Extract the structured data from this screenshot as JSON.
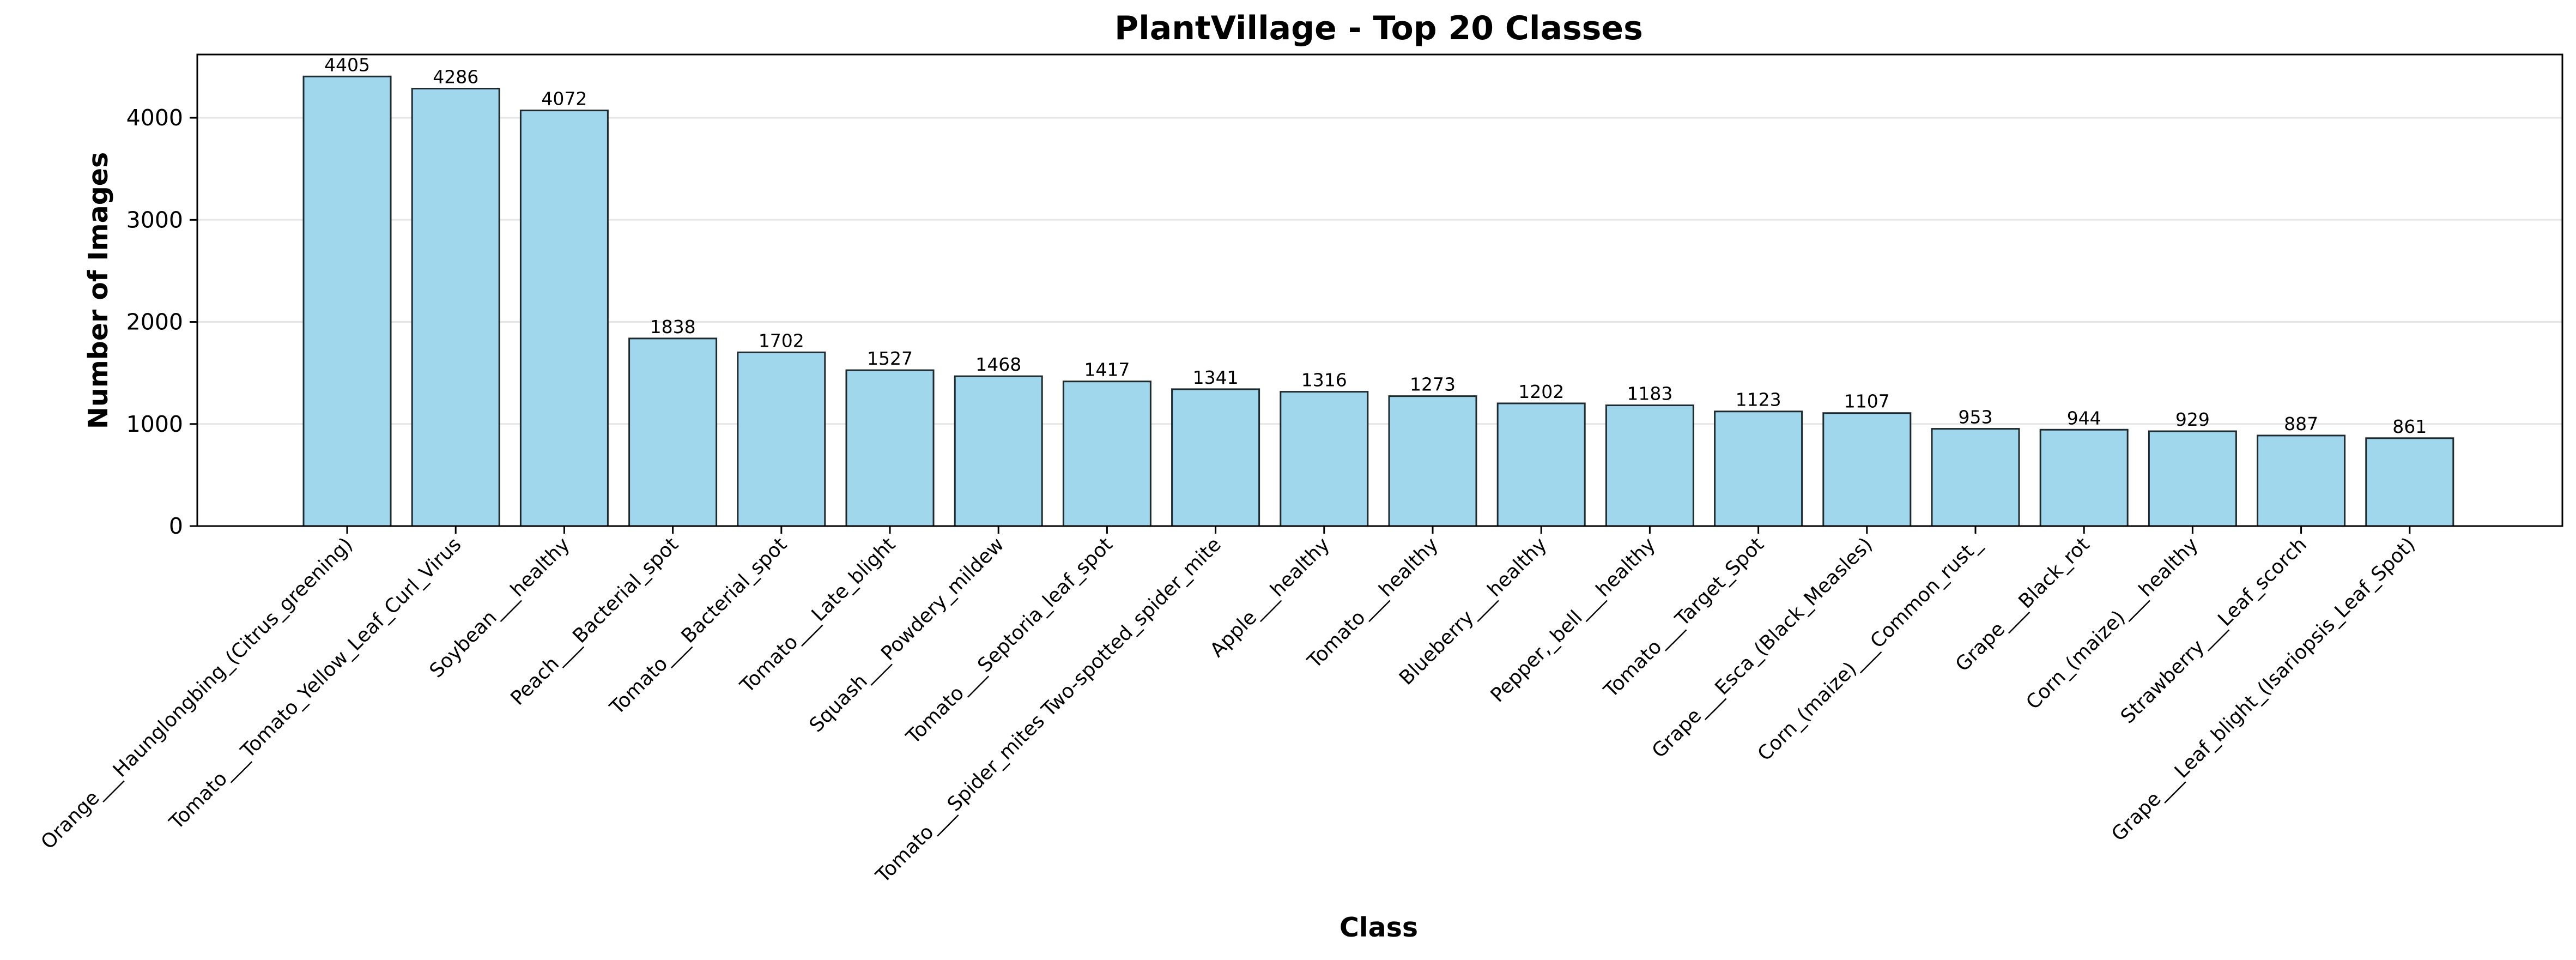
{
  "chart_data": {
    "type": "bar",
    "title": "PlantVillage - Top 20 Classes",
    "xlabel": "Class",
    "ylabel": "Number of Images",
    "ylim": [
      0,
      4620
    ],
    "yticks": [
      0,
      1000,
      2000,
      3000,
      4000
    ],
    "grid": "horizontal",
    "bar_color": "#a1d7ed",
    "edge_color": "#1f2a2e",
    "categories": [
      "Orange___Haunglongbing_(Citrus_greening)",
      "Tomato___Tomato_Yellow_Leaf_Curl_Virus",
      "Soybean___healthy",
      "Peach___Bacterial_spot",
      "Tomato___Bacterial_spot",
      "Tomato___Late_blight",
      "Squash___Powdery_mildew",
      "Tomato___Septoria_leaf_spot",
      "Tomato___Spider_mites Two-spotted_spider_mite",
      "Apple___healthy",
      "Tomato___healthy",
      "Blueberry___healthy",
      "Pepper,_bell___healthy",
      "Tomato___Target_Spot",
      "Grape___Esca_(Black_Measles)",
      "Corn_(maize)___Common_rust_",
      "Grape___Black_rot",
      "Corn_(maize)___healthy",
      "Strawberry___Leaf_scorch",
      "Grape___Leaf_blight_(Isariopsis_Leaf_Spot)"
    ],
    "values": [
      4405,
      4286,
      4072,
      1838,
      1702,
      1527,
      1468,
      1417,
      1341,
      1316,
      1273,
      1202,
      1183,
      1123,
      1107,
      953,
      944,
      929,
      887,
      861
    ]
  }
}
